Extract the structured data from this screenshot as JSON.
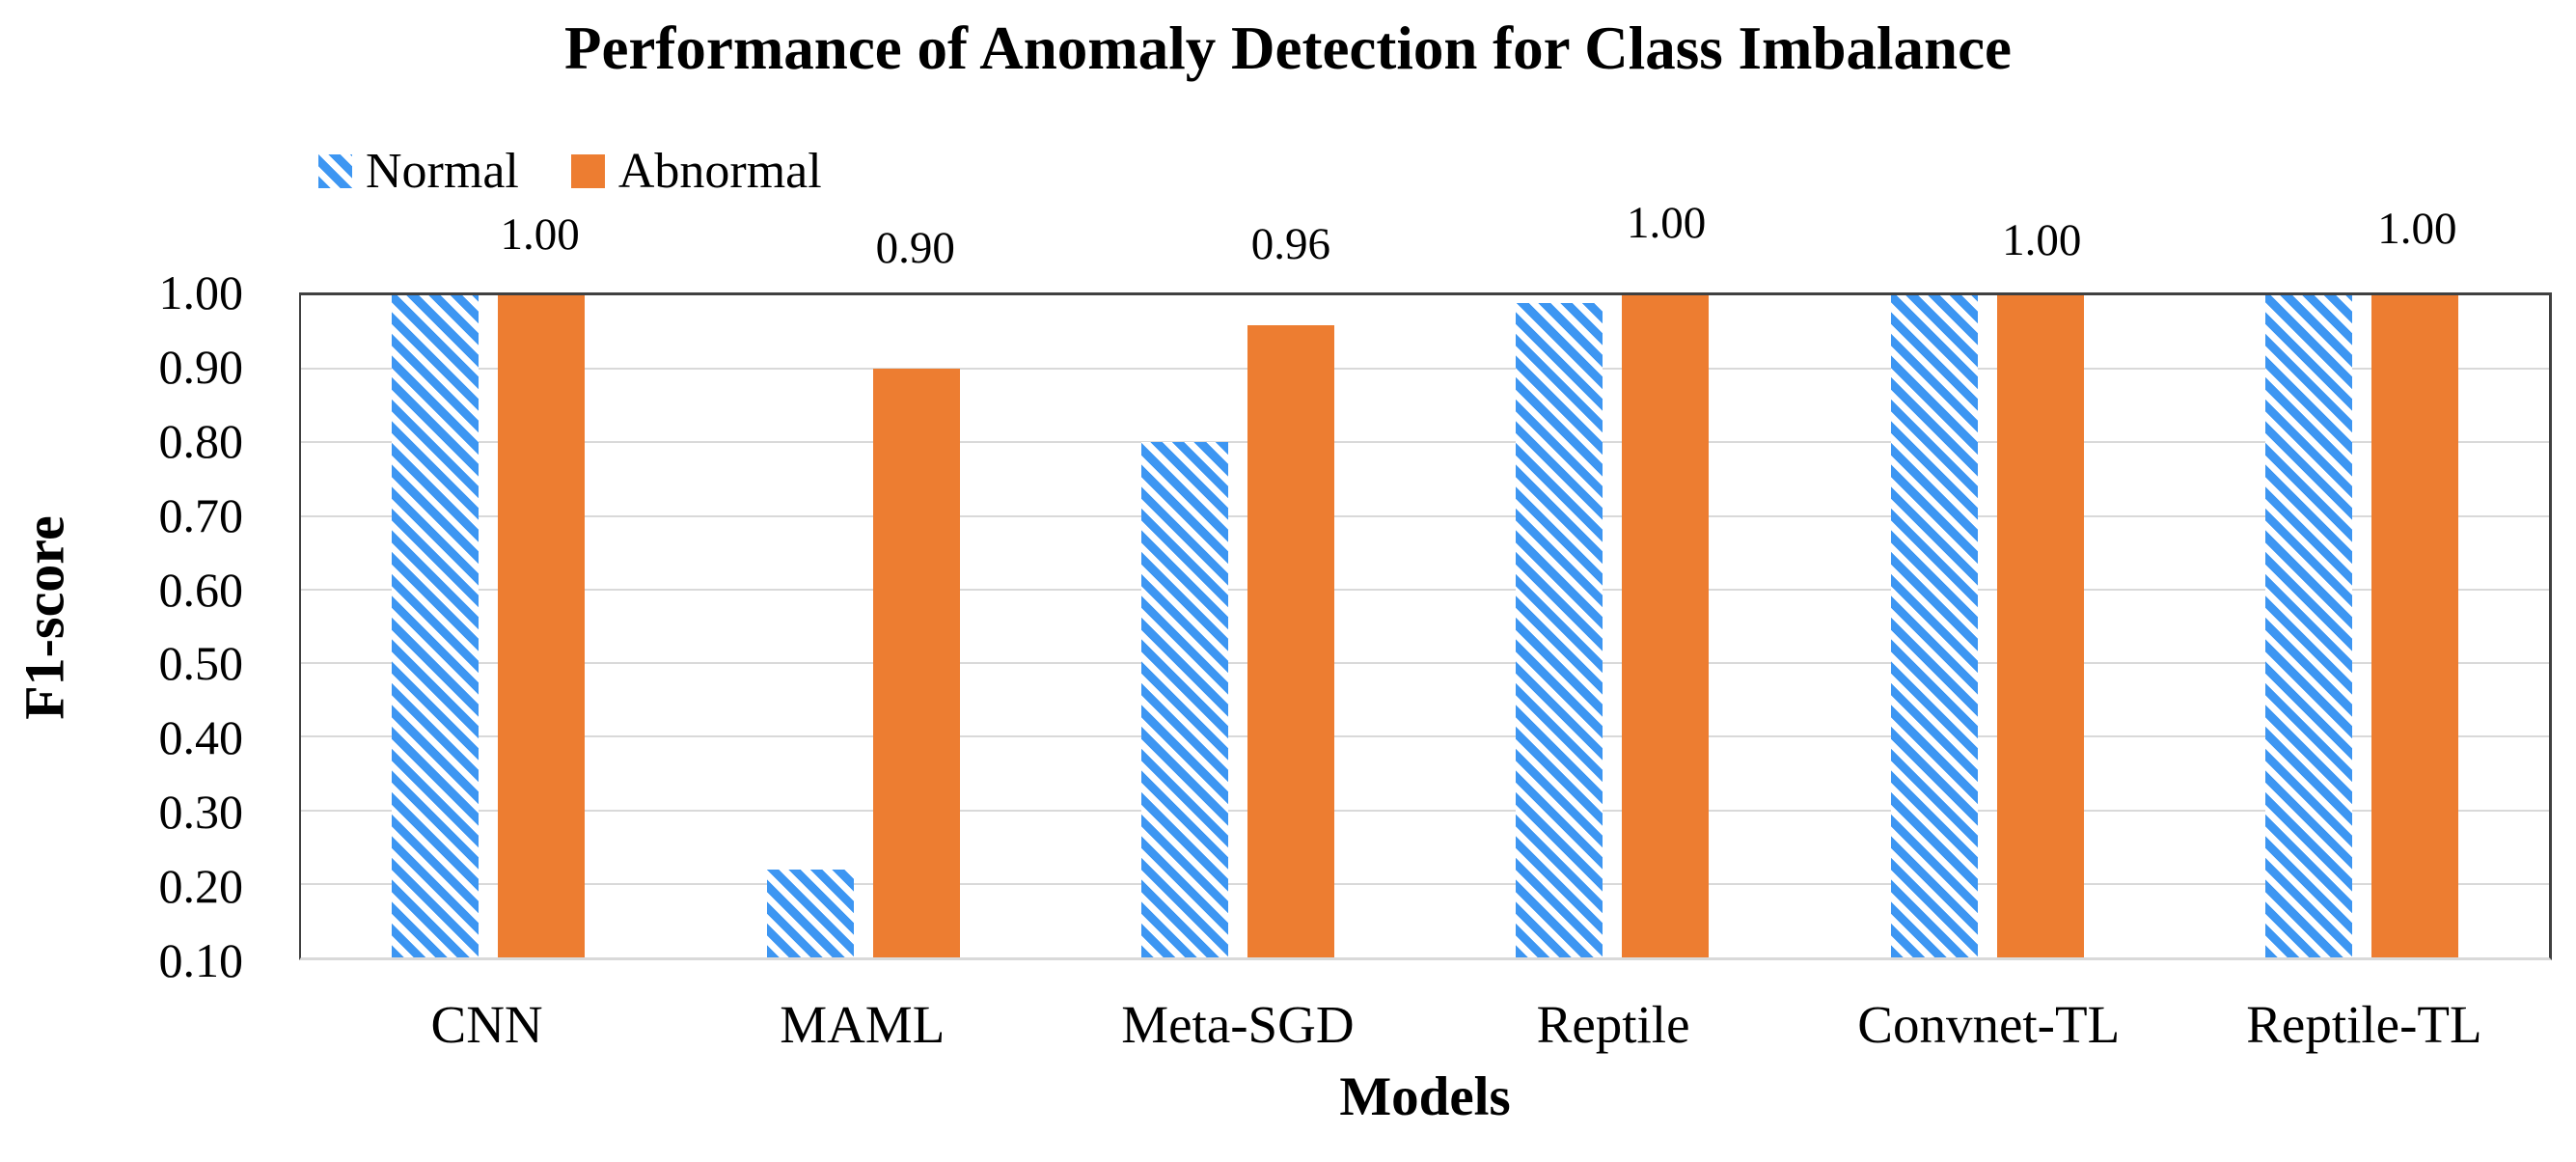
{
  "chart_data": {
    "type": "bar",
    "title": "Performance of Anomaly Detection for Class Imbalance",
    "xlabel": "Models",
    "ylabel": "F1-score",
    "categories": [
      "CNN",
      "MAML",
      "Meta-SGD",
      "Reptile",
      "Convnet-TL",
      "Reptile-TL"
    ],
    "series": [
      {
        "name": "Normal",
        "pattern": "diagonal-hatch",
        "color": "#3D96F2",
        "values": [
          1.0,
          0.22,
          0.8,
          0.99,
          1.0,
          1.0
        ]
      },
      {
        "name": "Abnormal",
        "pattern": "solid",
        "color": "#ED7D31",
        "values": [
          1.0,
          0.9,
          0.96,
          1.0,
          1.0,
          1.0
        ]
      }
    ],
    "data_labels": {
      "series": "Abnormal",
      "values": [
        "1.00",
        "0.90",
        "0.96",
        "1.00",
        "1.00",
        "1.00"
      ]
    },
    "y_axis": {
      "min": 0.1,
      "max": 1.0,
      "tick_step": 0.1,
      "tick_labels": [
        "1.00",
        "0.90",
        "0.80",
        "0.70",
        "0.60",
        "0.50",
        "0.40",
        "0.30",
        "0.20",
        "0.10"
      ]
    },
    "legend": {
      "position": "top-left",
      "entries": [
        {
          "label": "Normal"
        },
        {
          "label": "Abnormal"
        }
      ]
    },
    "grid": true,
    "ylim": [
      0.1,
      1.0
    ],
    "colors": {
      "normal_hatch_blue": "#3D96F2",
      "abnormal_orange": "#ED7D31",
      "gridline": "#D9D9D9",
      "axis": "#404040",
      "text": "#000000",
      "background": "#FFFFFF"
    }
  }
}
